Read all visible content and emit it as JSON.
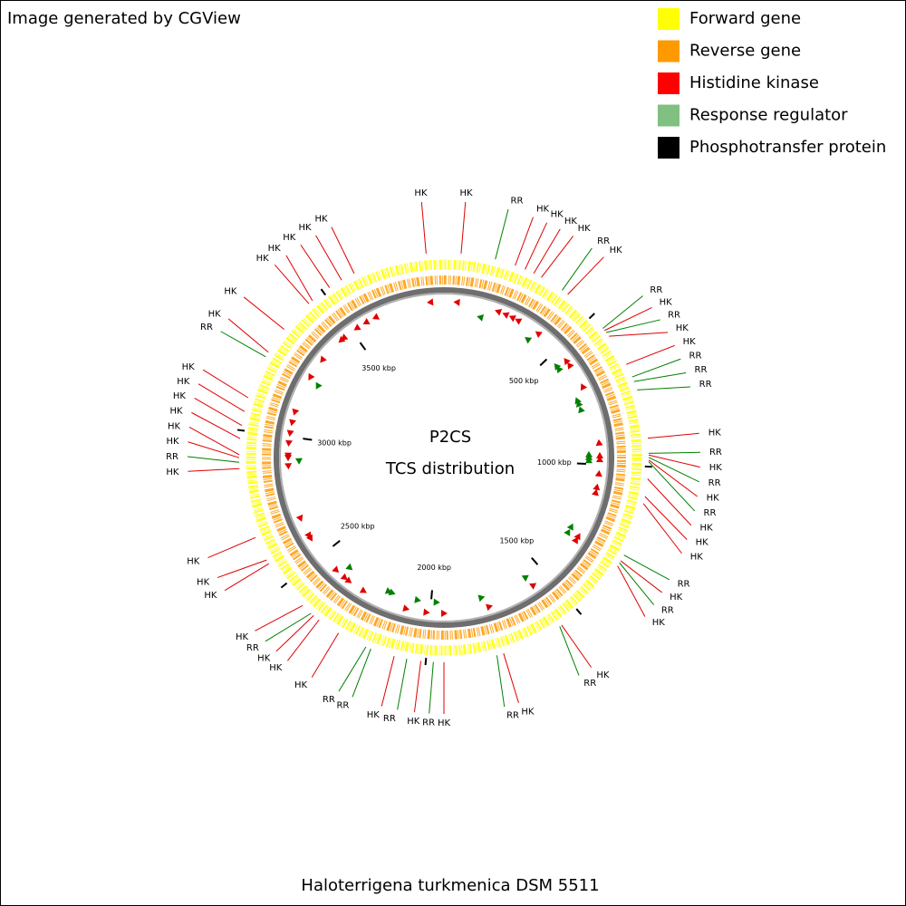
{
  "header": {
    "text": "Image generated by CGView"
  },
  "legend": [
    {
      "label": "Forward gene",
      "color": "#ffff00"
    },
    {
      "label": "Reverse gene",
      "color": "#ff9900"
    },
    {
      "label": "Histidine kinase",
      "color": "#ff0000"
    },
    {
      "label": "Response regulator",
      "color": "#80c080"
    },
    {
      "label": "Phosphotransfer protein",
      "color": "#000000"
    }
  ],
  "map": {
    "title": "P2CS",
    "subtitle": "TCS distribution",
    "range": [
      0,
      3890
    ],
    "ticks": [
      {
        "value": 500,
        "label": "500 kbp"
      },
      {
        "value": 1000,
        "label": "1000 kbp"
      },
      {
        "value": 1500,
        "label": "1500 kbp"
      },
      {
        "value": 2000,
        "label": "2000 kbp"
      },
      {
        "value": 2500,
        "label": "2500 kbp"
      },
      {
        "value": 3000,
        "label": "3000 kbp"
      },
      {
        "value": 3500,
        "label": "3500 kbp"
      }
    ],
    "features": [
      {
        "label": "HK",
        "color": "#e00000",
        "positions": [
          52,
          220,
          252,
          281,
          307,
          402,
          558,
          580,
          680,
          914,
          965,
          980,
          1037,
          1091,
          1113,
          1300,
          1318,
          1566,
          1762,
          1945,
          2015,
          2097,
          2280,
          2351,
          2372,
          2417,
          2580,
          2593,
          2669,
          2884,
          2917,
          2926,
          2975,
          3015,
          3058,
          3101,
          3252,
          3336,
          3444,
          3458,
          3523,
          3566,
          3609,
          3836
        ]
      },
      {
        "label": "RR",
        "color": "#008000",
        "positions": [
          157,
          381,
          550,
          566,
          722,
          737,
          764,
          960,
          972,
          985,
          1280,
          1307,
          1573,
          1783,
          1977,
          2058,
          2171,
          2187,
          2382,
          2903,
          3236
        ]
      }
    ]
  },
  "footer": {
    "text": "Haloterrigena turkmenica DSM 5511"
  }
}
